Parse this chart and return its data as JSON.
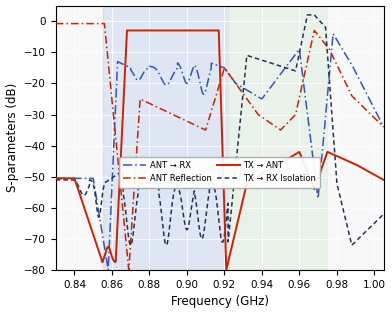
{
  "xlabel": "Frequency (GHz)",
  "ylabel": "S-parameters (dB)",
  "xlim": [
    0.83,
    1.005
  ],
  "ylim": [
    -80,
    5
  ],
  "yticks": [
    0,
    -10,
    -20,
    -30,
    -40,
    -50,
    -60,
    -70,
    -80
  ],
  "xticks": [
    0.84,
    0.86,
    0.88,
    0.9,
    0.92,
    0.94,
    0.96,
    0.98,
    1.0
  ],
  "blue_band": [
    0.855,
    0.922
  ],
  "green_band": [
    0.922,
    0.975
  ],
  "blue_band_color": "#c8d8ee",
  "green_band_color": "#ddeedd",
  "blue_color": "#3355bb",
  "red_color": "#cc2200",
  "dark_color": "#223355",
  "legend_entries": [
    "ANT → RX",
    "TX → ANT",
    "ANT Reflection",
    "TX → RX Isolation"
  ]
}
